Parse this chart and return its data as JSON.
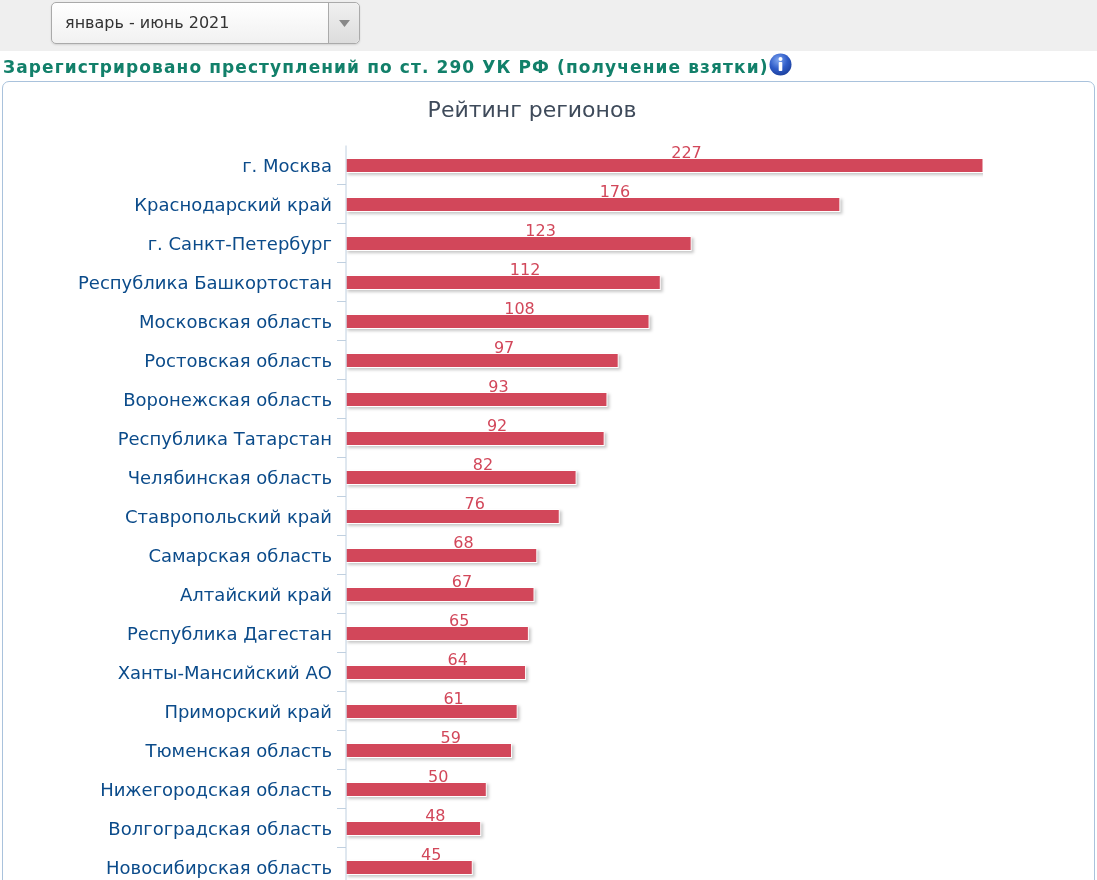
{
  "chart_data": {
    "type": "bar",
    "orientation": "horizontal",
    "title": "Зарегистрировано преступлений по ст. 290 УК РФ (получение взятки)",
    "subtitle": "Рейтинг регионов",
    "annotations": [
      "январь - июнь 2021"
    ],
    "categories": [
      "г. Москва",
      "Краснодарский край",
      "г. Санкт-Петербург",
      "Республика Башкортостан",
      "Московская область",
      "Ростовская область",
      "Воронежская область",
      "Республика Татарстан",
      "Челябинская область",
      "Ставропольский край",
      "Самарская область",
      "Алтайский край",
      "Республика Дагестан",
      "Ханты-Мансийский АО",
      "Приморский край",
      "Тюменская область",
      "Нижегородская область",
      "Волгоградская область",
      "Новосибирская область"
    ],
    "values": [
      227,
      176,
      123,
      112,
      108,
      97,
      93,
      92,
      82,
      76,
      68,
      67,
      65,
      64,
      61,
      59,
      50,
      48,
      45
    ],
    "color": "#d2475a",
    "data_labels": true,
    "tick_labels": "y"
  }
}
